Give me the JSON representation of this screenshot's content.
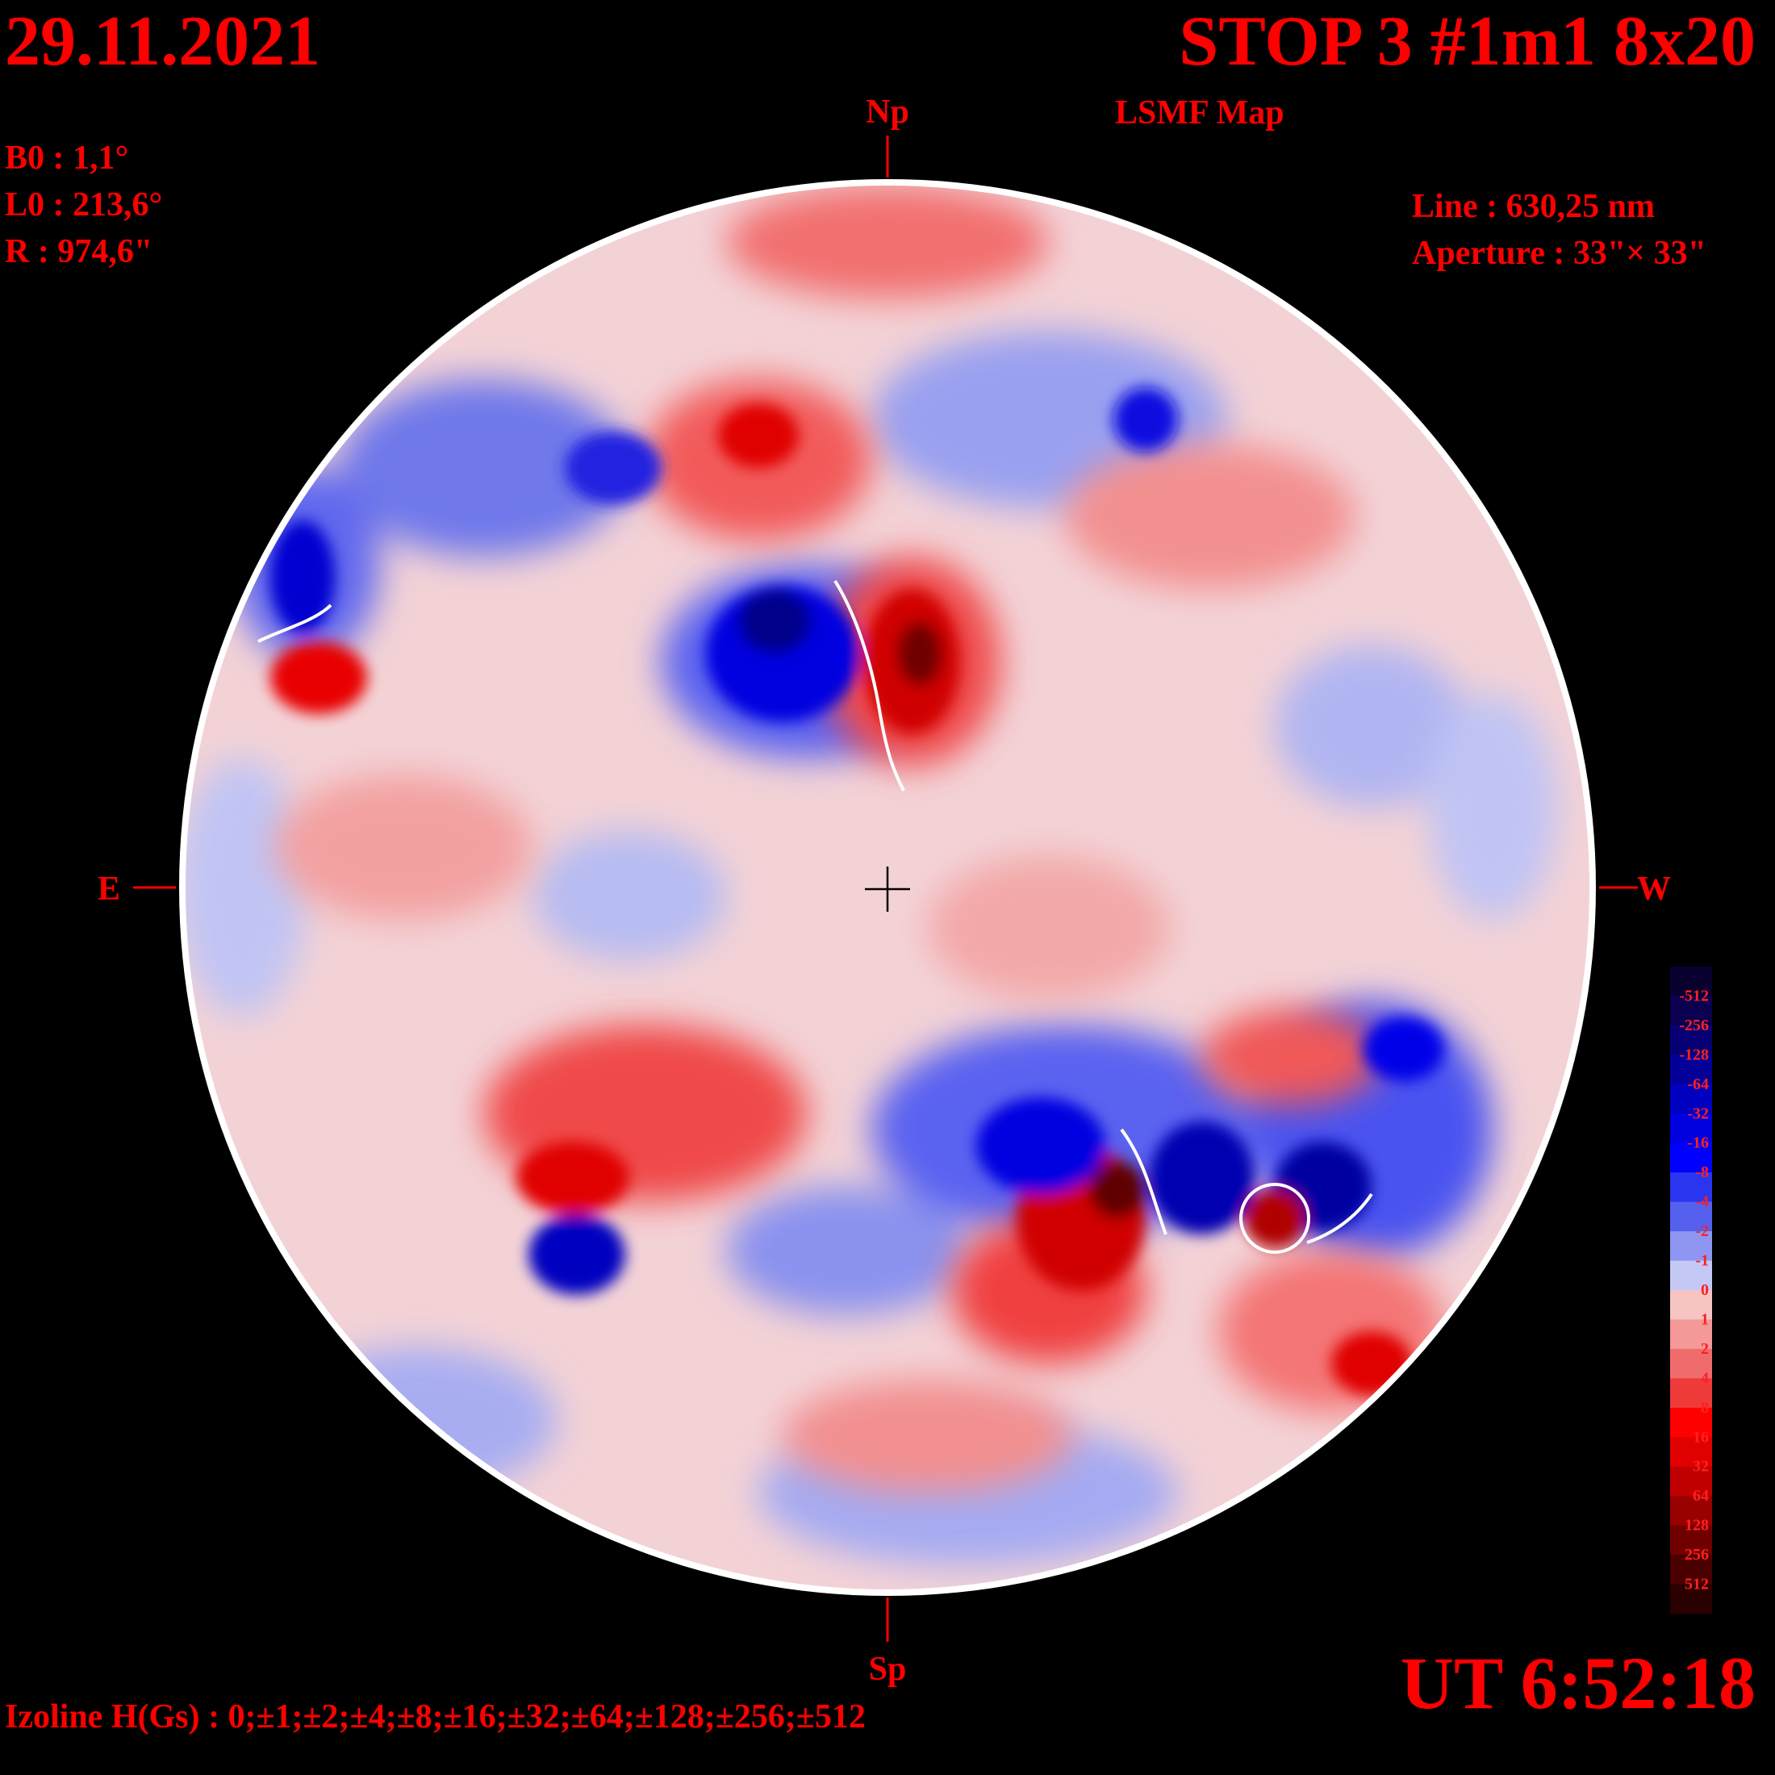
{
  "header": {
    "date": "29.11.2021",
    "title": "STOP 3 #1m1 8x20",
    "subtitle": "LSMF  Map"
  },
  "params": {
    "b0": "B0 : 1,1°",
    "l0": "L0 : 213,6°",
    "r": "R  : 974,6\""
  },
  "instrument": {
    "line": "Line :  630,25 nm",
    "aperture": "Aperture : 33\"× 33\""
  },
  "directions": {
    "north": "Np",
    "south": "Sp",
    "east": "E",
    "west": "W"
  },
  "time": "UT 6:52:18",
  "izoline": "Izoline H(Gs) : 0;±1;±2;±4;±8;±16;±32;±64;±128;±256;±512",
  "colorbar": {
    "labels": [
      "-512",
      "-256",
      "-128",
      "-64",
      "-32",
      "-16",
      "-8",
      "-4",
      "-2",
      "-1",
      "0",
      "1",
      "2",
      "4",
      "8",
      "16",
      "32",
      "64",
      "128",
      "256",
      "512"
    ],
    "colors": [
      "#0a0030",
      "#0b0050",
      "#070075",
      "#03009a",
      "#0000c0",
      "#0000e0",
      "#0000ff",
      "#2a35f0",
      "#5560ee",
      "#8e96f2",
      "#c4c8f4",
      "#f7c4c4",
      "#f49898",
      "#f06c6c",
      "#ef3a3a",
      "#ff0000",
      "#e00000",
      "#c00000",
      "#990000",
      "#700000",
      "#4a0000",
      "#2a0000"
    ]
  }
}
